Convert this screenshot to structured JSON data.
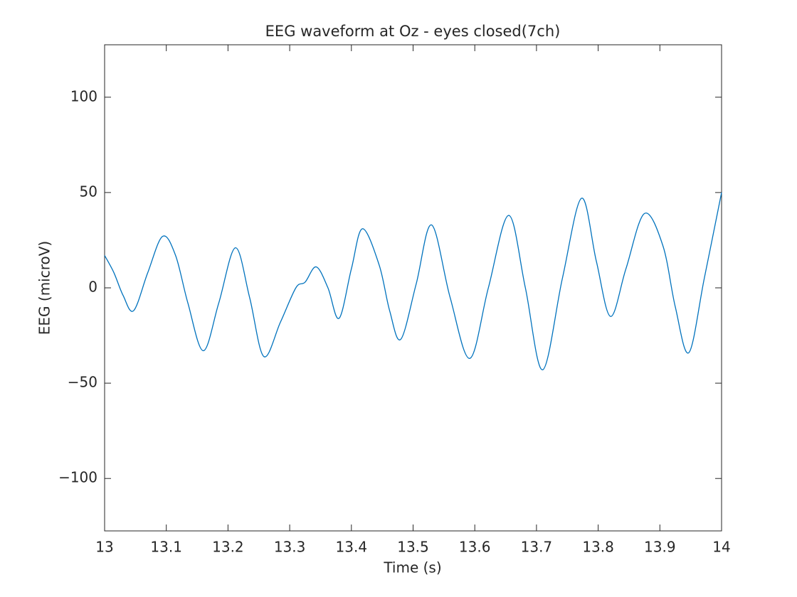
{
  "chart_data": {
    "type": "line",
    "title": "EEG waveform at Oz - eyes closed(7ch)",
    "x_label": "Time (s)",
    "y_label": "EEG (microV)",
    "x": [
      13.0,
      13.015,
      13.03,
      13.047,
      13.07,
      13.094,
      13.115,
      13.135,
      13.16,
      13.185,
      13.212,
      13.235,
      13.258,
      13.285,
      13.31,
      13.325,
      13.343,
      13.362,
      13.38,
      13.4,
      13.418,
      13.445,
      13.462,
      13.48,
      13.505,
      13.53,
      13.56,
      13.592,
      13.622,
      13.655,
      13.682,
      13.71,
      13.742,
      13.773,
      13.797,
      13.82,
      13.845,
      13.875,
      13.905,
      13.925,
      13.947,
      13.972,
      14.0
    ],
    "series": [
      {
        "color": "#0072bd",
        "values": [
          17,
          8,
          -4,
          -12,
          8,
          27,
          17,
          -8,
          -33,
          -8,
          21,
          -5,
          -36,
          -18,
          0,
          3,
          11,
          0,
          -16,
          10,
          31,
          12,
          -12,
          -27,
          2,
          33,
          -5,
          -37,
          0,
          38,
          0,
          -43,
          5,
          47,
          14,
          -15,
          10,
          39,
          22,
          -10,
          -34,
          5,
          50
        ]
      }
    ],
    "xlim": [
      13,
      14
    ],
    "xticks": [
      13,
      13.1,
      13.2,
      13.3,
      13.4,
      13.5,
      13.6,
      13.7,
      13.8,
      13.9,
      14
    ],
    "ylim": [
      -127.5,
      127.5
    ],
    "yticks": [
      {
        "value": -100,
        "label": "−100"
      },
      {
        "value": -50,
        "label": "−50"
      },
      0,
      50,
      100
    ]
  }
}
